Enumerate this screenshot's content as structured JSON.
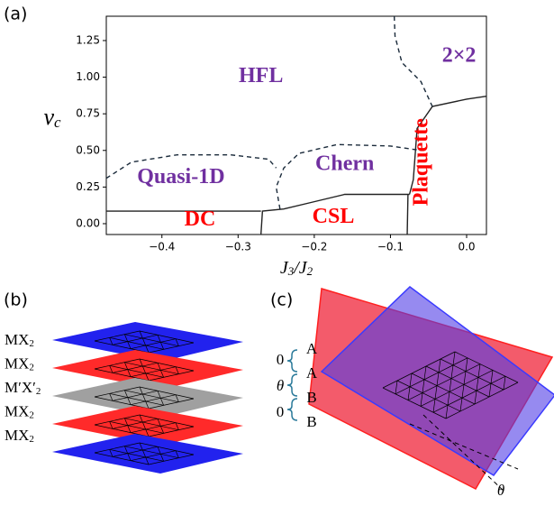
{
  "panels": {
    "a": "(a)",
    "b": "(b)",
    "c": "(c)"
  },
  "chart_data": {
    "type": "phase-diagram",
    "xlabel": [
      "J",
      "3",
      "/J",
      "2"
    ],
    "ylabel": [
      "ν",
      "c"
    ],
    "xlim": [
      -0.473,
      0.026
    ],
    "ylim": [
      -0.074,
      1.416
    ],
    "xticks": [
      {
        "value": -0.4,
        "label": "−0.4"
      },
      {
        "value": -0.3,
        "label": "−0.3"
      },
      {
        "value": -0.2,
        "label": "−0.2"
      },
      {
        "value": -0.1,
        "label": "−0.1"
      },
      {
        "value": 0,
        "label": "0.0"
      }
    ],
    "yticks": [
      {
        "value": 0,
        "label": "0.00"
      },
      {
        "value": 0.25,
        "label": "0.25"
      },
      {
        "value": 0.5,
        "label": "0.50"
      },
      {
        "value": 0.75,
        "label": "0.75"
      },
      {
        "value": 1,
        "label": "1.00"
      },
      {
        "value": 1.25,
        "label": "1.25"
      }
    ],
    "regions": [
      {
        "label": "HFL",
        "color": "#7030a0"
      },
      {
        "label": "2×2",
        "color": "#7030a0"
      },
      {
        "label": "Quasi-1D",
        "color": "#7030a0"
      },
      {
        "label": "Chern",
        "color": "#7030a0"
      },
      {
        "label": "DC",
        "color": "#ff0000"
      },
      {
        "label": "CSL",
        "color": "#ff0000"
      },
      {
        "label": "Plaquette",
        "color": "#ff0000"
      }
    ],
    "boundaries": [
      {
        "style": "solid",
        "x": [
          -0.473,
          -0.27
        ],
        "y": [
          0.086,
          0.086
        ]
      },
      {
        "style": "solid",
        "x": [
          -0.27,
          -0.268,
          -0.24,
          -0.2,
          -0.16,
          -0.075
        ],
        "y": [
          -0.074,
          0.086,
          0.1,
          0.15,
          0.2,
          0.2
        ]
      },
      {
        "style": "solid",
        "x": [
          -0.078,
          -0.077
        ],
        "y": [
          -0.074,
          0.2
        ]
      },
      {
        "style": "solid",
        "x": [
          -0.075,
          -0.07,
          -0.065,
          -0.045,
          0,
          0.026
        ],
        "y": [
          0.2,
          0.3,
          0.65,
          0.8,
          0.85,
          0.87
        ]
      },
      {
        "style": "dashed",
        "x": [
          -0.473,
          -0.44,
          -0.38,
          -0.31,
          -0.26,
          -0.25
        ],
        "y": [
          0.31,
          0.42,
          0.47,
          0.47,
          0.44,
          0.38
        ]
      },
      {
        "style": "dashed",
        "x": [
          -0.245,
          -0.25,
          -0.24,
          -0.22,
          -0.17,
          -0.1,
          -0.06
        ],
        "y": [
          0.1,
          0.25,
          0.38,
          0.48,
          0.54,
          0.53,
          0.5
        ]
      },
      {
        "style": "dashed",
        "x": [
          -0.095,
          -0.094,
          -0.085,
          -0.06,
          -0.045
        ],
        "y": [
          1.416,
          1.28,
          1.1,
          0.97,
          0.8
        ]
      }
    ]
  },
  "layers": [
    {
      "label": "MX",
      "sub": "2",
      "color": "#2222ee"
    },
    {
      "label": "MX",
      "sub": "2",
      "color": "#ff2a2a"
    },
    {
      "label": "M′X′",
      "sub": "2",
      "color": "#a0a0a0"
    },
    {
      "label": "MX",
      "sub": "2",
      "color": "#ff2a2a"
    },
    {
      "label": "MX",
      "sub": "2",
      "color": "#2222ee"
    }
  ],
  "stacking": {
    "angles": [
      "0",
      "θ",
      "0"
    ],
    "layers": [
      "A",
      "A",
      "B",
      "B"
    ],
    "twist": "θ"
  }
}
